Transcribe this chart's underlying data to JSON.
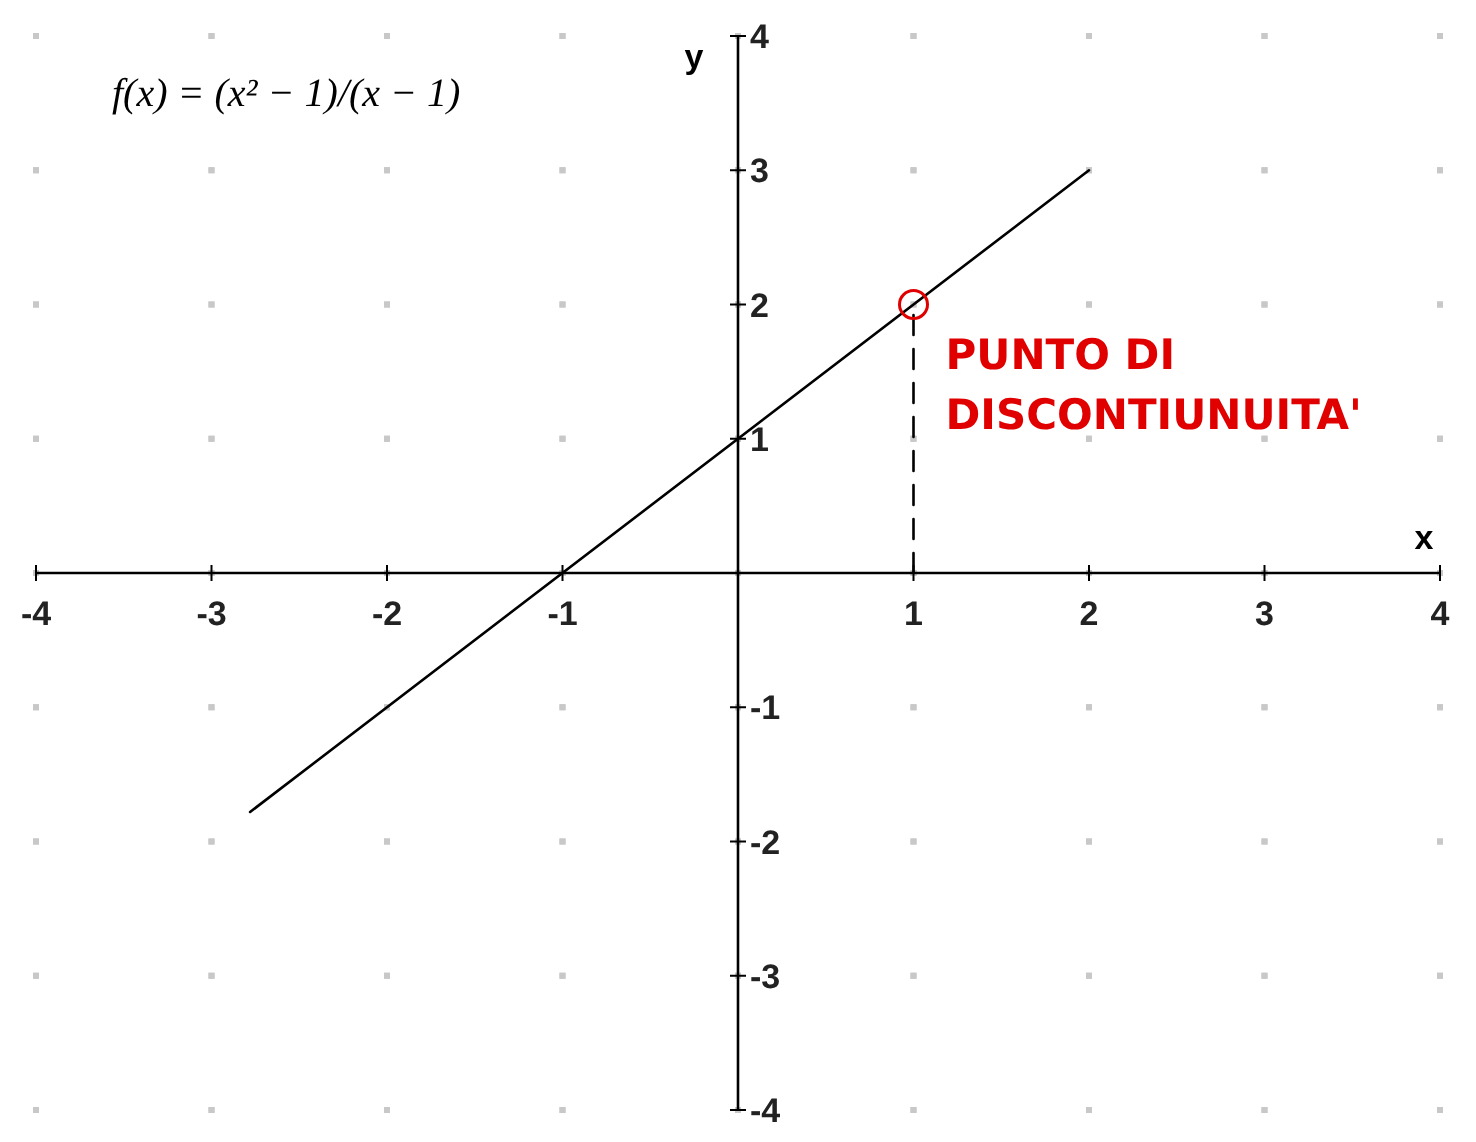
{
  "chart_data": {
    "type": "line",
    "title": "f(x) = (x² − 1)/(x − 1)",
    "xlabel": "x",
    "ylabel": "y",
    "xlim": [
      -4,
      4
    ],
    "ylim": [
      -4,
      4
    ],
    "xticks": [
      -4,
      -3,
      -2,
      -1,
      {
        "value": 0,
        "label": null
      },
      1,
      2,
      3,
      4
    ],
    "yticks": [
      -4,
      -3,
      -2,
      -1,
      {
        "value": 0,
        "label": null
      },
      1,
      2,
      3,
      4
    ],
    "grid": true,
    "series": [
      {
        "color": "#000000",
        "x": [
          -2.78,
          2
        ],
        "values": [
          -1.78,
          3
        ],
        "line_style": "solid"
      },
      {
        "color": "#000000",
        "x": [
          1,
          1
        ],
        "values": [
          0,
          2
        ],
        "line_style": "dashed"
      },
      {
        "type": "scatter",
        "color": "#e00000",
        "x": [
          1
        ],
        "values": [
          2
        ],
        "marker": "circle"
      }
    ],
    "annotations": [
      {
        "text": "PUNTO DI DISCONTIUNUITA'",
        "x": 1,
        "y": 2
      }
    ]
  }
}
